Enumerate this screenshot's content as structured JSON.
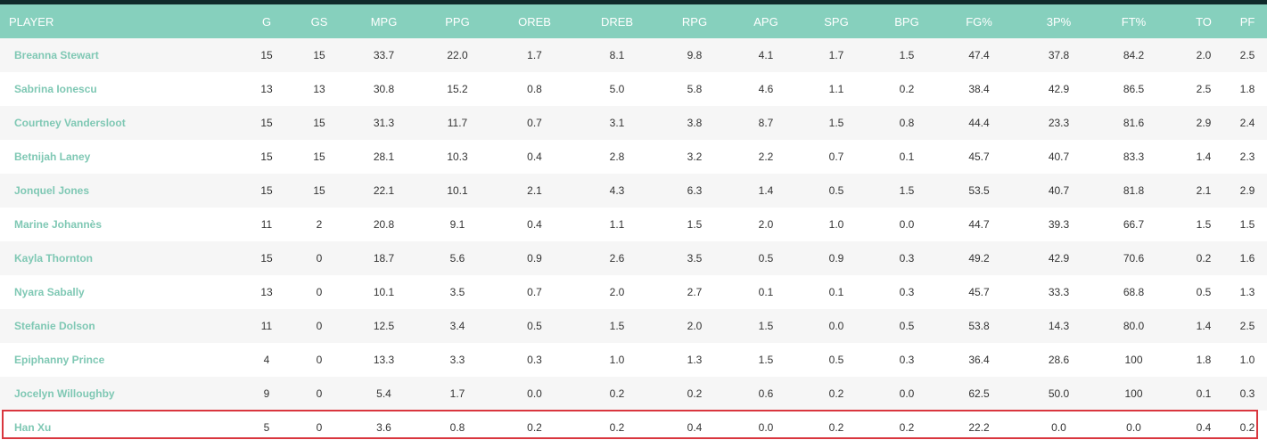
{
  "table": {
    "columns": [
      "PLAYER",
      "G",
      "GS",
      "MPG",
      "PPG",
      "OREB",
      "DREB",
      "RPG",
      "APG",
      "SPG",
      "BPG",
      "FG%",
      "3P%",
      "FT%",
      "TO",
      "PF"
    ],
    "rows": [
      {
        "name": "Breanna Stewart",
        "stats": [
          "15",
          "15",
          "33.7",
          "22.0",
          "1.7",
          "8.1",
          "9.8",
          "4.1",
          "1.7",
          "1.5",
          "47.4",
          "37.8",
          "84.2",
          "2.0",
          "2.5"
        ]
      },
      {
        "name": "Sabrina Ionescu",
        "stats": [
          "13",
          "13",
          "30.8",
          "15.2",
          "0.8",
          "5.0",
          "5.8",
          "4.6",
          "1.1",
          "0.2",
          "38.4",
          "42.9",
          "86.5",
          "2.5",
          "1.8"
        ]
      },
      {
        "name": "Courtney Vandersloot",
        "stats": [
          "15",
          "15",
          "31.3",
          "11.7",
          "0.7",
          "3.1",
          "3.8",
          "8.7",
          "1.5",
          "0.8",
          "44.4",
          "23.3",
          "81.6",
          "2.9",
          "2.4"
        ]
      },
      {
        "name": "Betnijah Laney",
        "stats": [
          "15",
          "15",
          "28.1",
          "10.3",
          "0.4",
          "2.8",
          "3.2",
          "2.2",
          "0.7",
          "0.1",
          "45.7",
          "40.7",
          "83.3",
          "1.4",
          "2.3"
        ]
      },
      {
        "name": "Jonquel Jones",
        "stats": [
          "15",
          "15",
          "22.1",
          "10.1",
          "2.1",
          "4.3",
          "6.3",
          "1.4",
          "0.5",
          "1.5",
          "53.5",
          "40.7",
          "81.8",
          "2.1",
          "2.9"
        ]
      },
      {
        "name": "Marine Johannès",
        "stats": [
          "11",
          "2",
          "20.8",
          "9.1",
          "0.4",
          "1.1",
          "1.5",
          "2.0",
          "1.0",
          "0.0",
          "44.7",
          "39.3",
          "66.7",
          "1.5",
          "1.5"
        ]
      },
      {
        "name": "Kayla Thornton",
        "stats": [
          "15",
          "0",
          "18.7",
          "5.6",
          "0.9",
          "2.6",
          "3.5",
          "0.5",
          "0.9",
          "0.3",
          "49.2",
          "42.9",
          "70.6",
          "0.2",
          "1.6"
        ]
      },
      {
        "name": "Nyara Sabally",
        "stats": [
          "13",
          "0",
          "10.1",
          "3.5",
          "0.7",
          "2.0",
          "2.7",
          "0.1",
          "0.1",
          "0.3",
          "45.7",
          "33.3",
          "68.8",
          "0.5",
          "1.3"
        ]
      },
      {
        "name": "Stefanie Dolson",
        "stats": [
          "11",
          "0",
          "12.5",
          "3.4",
          "0.5",
          "1.5",
          "2.0",
          "1.5",
          "0.0",
          "0.5",
          "53.8",
          "14.3",
          "80.0",
          "1.4",
          "2.5"
        ]
      },
      {
        "name": "Epiphanny Prince",
        "stats": [
          "4",
          "0",
          "13.3",
          "3.3",
          "0.3",
          "1.0",
          "1.3",
          "1.5",
          "0.5",
          "0.3",
          "36.4",
          "28.6",
          "100",
          "1.8",
          "1.0"
        ]
      },
      {
        "name": "Jocelyn Willoughby",
        "stats": [
          "9",
          "0",
          "5.4",
          "1.7",
          "0.0",
          "0.2",
          "0.2",
          "0.6",
          "0.2",
          "0.0",
          "62.5",
          "50.0",
          "100",
          "0.1",
          "0.3"
        ]
      },
      {
        "name": "Han Xu",
        "stats": [
          "5",
          "0",
          "3.6",
          "0.8",
          "0.2",
          "0.2",
          "0.4",
          "0.0",
          "0.2",
          "0.2",
          "22.2",
          "0.0",
          "0.0",
          "0.4",
          "0.2"
        ]
      }
    ]
  },
  "colors": {
    "header_bg": "#86d0bd",
    "player_link": "#7fc8b4",
    "highlight_border": "#d9363e"
  }
}
